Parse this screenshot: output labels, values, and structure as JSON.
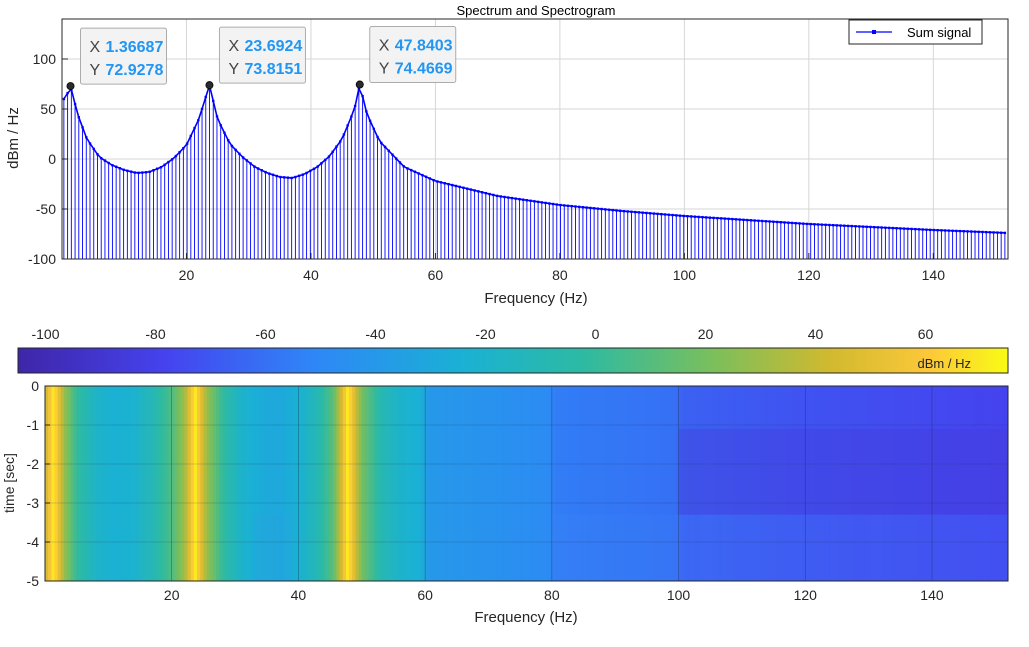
{
  "figure": {
    "title": "Spectrum and Spectrogram"
  },
  "chart_data": [
    {
      "type": "line",
      "style": "stem",
      "title": "Spectrum and Spectrogram",
      "xlabel": "Frequency (Hz)",
      "ylabel": "dBm / Hz",
      "xlim": [
        0,
        152
      ],
      "ylim": [
        -100,
        140
      ],
      "xticks": [
        20,
        40,
        60,
        80,
        100,
        120,
        140
      ],
      "yticks": [
        -100,
        -50,
        0,
        50,
        100
      ],
      "grid": true,
      "legend": {
        "placement": "top-right",
        "entries": [
          "Sum signal"
        ]
      },
      "series": [
        {
          "name": "Sum signal",
          "color": "#0000ff",
          "peaks_hz": [
            1.36687,
            23.6924,
            47.8403
          ],
          "x_step_hz": 0.6,
          "approx_points": [
            [
              0.5,
              60
            ],
            [
              1.37,
              72.9
            ],
            [
              2.5,
              45
            ],
            [
              4,
              20
            ],
            [
              6,
              2
            ],
            [
              8,
              -6
            ],
            [
              10,
              -11
            ],
            [
              12,
              -14
            ],
            [
              14,
              -13
            ],
            [
              16,
              -8
            ],
            [
              18,
              1
            ],
            [
              20,
              14
            ],
            [
              22,
              40
            ],
            [
              23.69,
              73.8
            ],
            [
              25,
              40
            ],
            [
              27,
              15
            ],
            [
              29,
              2
            ],
            [
              31,
              -8
            ],
            [
              33,
              -14
            ],
            [
              35,
              -18
            ],
            [
              37,
              -19
            ],
            [
              39,
              -15
            ],
            [
              41,
              -8
            ],
            [
              43,
              3
            ],
            [
              45,
              20
            ],
            [
              47,
              50
            ],
            [
              47.84,
              74.5
            ],
            [
              49,
              45
            ],
            [
              51,
              18
            ],
            [
              55,
              -8
            ],
            [
              60,
              -22
            ],
            [
              70,
              -37
            ],
            [
              80,
              -46
            ],
            [
              90,
              -52
            ],
            [
              100,
              -57
            ],
            [
              110,
              -61
            ],
            [
              120,
              -65
            ],
            [
              130,
              -68
            ],
            [
              140,
              -71
            ],
            [
              152,
              -74
            ]
          ]
        }
      ],
      "annotations": [
        {
          "x": "1.36687",
          "y": "72.9278",
          "x_value": 1.36687,
          "y_value": 72.9278
        },
        {
          "x": "23.6924",
          "y": "73.8151",
          "x_value": 23.6924,
          "y_value": 73.8151
        },
        {
          "x": "47.8403",
          "y": "74.4669",
          "x_value": 47.8403,
          "y_value": 74.4669
        }
      ]
    },
    {
      "type": "heatmap",
      "xlabel": "Frequency (Hz)",
      "ylabel": "time [sec]",
      "xlim": [
        0,
        152
      ],
      "ylim": [
        -5,
        0
      ],
      "xticks": [
        20,
        40,
        60,
        80,
        100,
        120,
        140
      ],
      "yticks": [
        0,
        -1,
        -2,
        -3,
        -4,
        -5
      ],
      "grid": true,
      "colorbar": {
        "placement": "top",
        "label": "dBm / Hz",
        "range": [
          -105,
          75
        ],
        "ticks": [
          -100,
          -80,
          -60,
          -40,
          -20,
          0,
          20,
          40,
          60
        ],
        "colormap": "parula"
      },
      "notes_value_profile_hz_db": [
        [
          0,
          40
        ],
        [
          1.37,
          72
        ],
        [
          3,
          30
        ],
        [
          5,
          0
        ],
        [
          8,
          -18
        ],
        [
          11,
          -24
        ],
        [
          14,
          -22
        ],
        [
          17,
          -10
        ],
        [
          20,
          8
        ],
        [
          22,
          30
        ],
        [
          23.69,
          72
        ],
        [
          25.5,
          30
        ],
        [
          28,
          0
        ],
        [
          31,
          -20
        ],
        [
          34,
          -28
        ],
        [
          37,
          -30
        ],
        [
          40,
          -24
        ],
        [
          43,
          -10
        ],
        [
          45.5,
          12
        ],
        [
          47.84,
          72
        ],
        [
          50,
          20
        ],
        [
          53,
          -8
        ],
        [
          56,
          -20
        ],
        [
          59.5,
          -26
        ],
        [
          60.5,
          -40
        ],
        [
          79.5,
          -48
        ],
        [
          80.5,
          -55
        ],
        [
          99.5,
          -60
        ],
        [
          100.5,
          -66
        ],
        [
          120,
          -72
        ],
        [
          152,
          -78
        ]
      ]
    }
  ],
  "legend": {
    "label": "Sum signal"
  },
  "axes": {
    "top_xlabel": "Frequency (Hz)",
    "top_ylabel": "dBm / Hz",
    "bottom_xlabel": "Frequency (Hz)",
    "bottom_ylabel": "time [sec]",
    "colorbar_label": "dBm / Hz"
  },
  "colors": {
    "series": "#0000ff",
    "grid": "#d6d6d6",
    "marker": "#2b2b2b",
    "datatip_value": "#2196f3",
    "axis": "#262626"
  }
}
